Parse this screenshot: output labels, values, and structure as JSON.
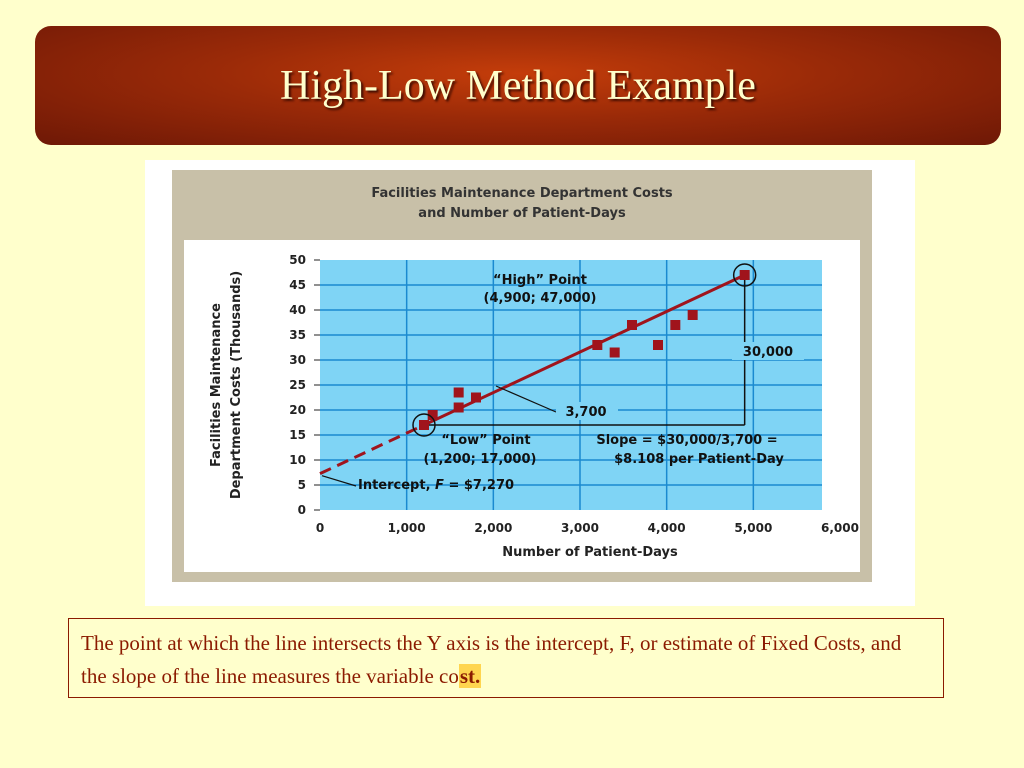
{
  "slide": {
    "title": "High-Low Method Example",
    "caption_main": "The point at which the line intersects the Y axis is the intercept, F, or estimate of Fixed Costs, and the slope of the line measures the variable co",
    "caption_tail": "st."
  },
  "colors": {
    "title_bar": "#9a2a08",
    "title_text": "#ffffcc",
    "background": "#ffffcc",
    "plot_background": "#7fd4f5",
    "gridline": "#1a8ad0",
    "line": "#a0141c",
    "point": "#a0141c"
  },
  "chart_data": {
    "type": "scatter",
    "title": "Facilities Maintenance Department Costs\nand Number of Patient-Days",
    "xlabel": "Number of Patient-Days",
    "ylabel_line1": "Facilities Maintenance",
    "ylabel_line2": "Department Costs (Thousands)",
    "xlim": [
      0,
      6000
    ],
    "ylim": [
      0,
      50
    ],
    "x_ticks": [
      0,
      1000,
      2000,
      3000,
      4000,
      5000,
      6000
    ],
    "x_tick_labels": [
      "0",
      "1,000",
      "2,000",
      "3,000",
      "4,000",
      "5,000",
      "6,000"
    ],
    "y_ticks": [
      0,
      5,
      10,
      15,
      20,
      25,
      30,
      35,
      40,
      45,
      50
    ],
    "y_tick_labels": [
      "0",
      "5",
      "10",
      "15",
      "20",
      "25",
      "30",
      "35",
      "40",
      "45",
      "50"
    ],
    "grid": true,
    "points": [
      {
        "x": 1200,
        "y": 17
      },
      {
        "x": 1300,
        "y": 19
      },
      {
        "x": 1600,
        "y": 20.5
      },
      {
        "x": 1600,
        "y": 23.5
      },
      {
        "x": 1800,
        "y": 22.5
      },
      {
        "x": 3200,
        "y": 33
      },
      {
        "x": 3400,
        "y": 31.5
      },
      {
        "x": 3600,
        "y": 37
      },
      {
        "x": 3900,
        "y": 33
      },
      {
        "x": 4100,
        "y": 37
      },
      {
        "x": 4300,
        "y": 39
      },
      {
        "x": 4900,
        "y": 47
      }
    ],
    "fit_line": {
      "intercept": 7.27,
      "slope_per_1000": 8.108,
      "dashed_until_x": 1200,
      "end_x": 4900
    },
    "annotations": {
      "high_point_l1": "“High” Point",
      "high_point_l2": "(4,900; 47,000)",
      "low_point_l1": "“Low” Point",
      "low_point_l2": "(1,200; 17,000)",
      "rise": "30,000",
      "run": "3,700",
      "slope_l1": "Slope = $30,000/3,700 =",
      "slope_l2": "$8.108 per Patient-Day",
      "intercept_prefix": "Intercept, ",
      "intercept_var": "F",
      "intercept_suffix": " = $7,270"
    }
  }
}
